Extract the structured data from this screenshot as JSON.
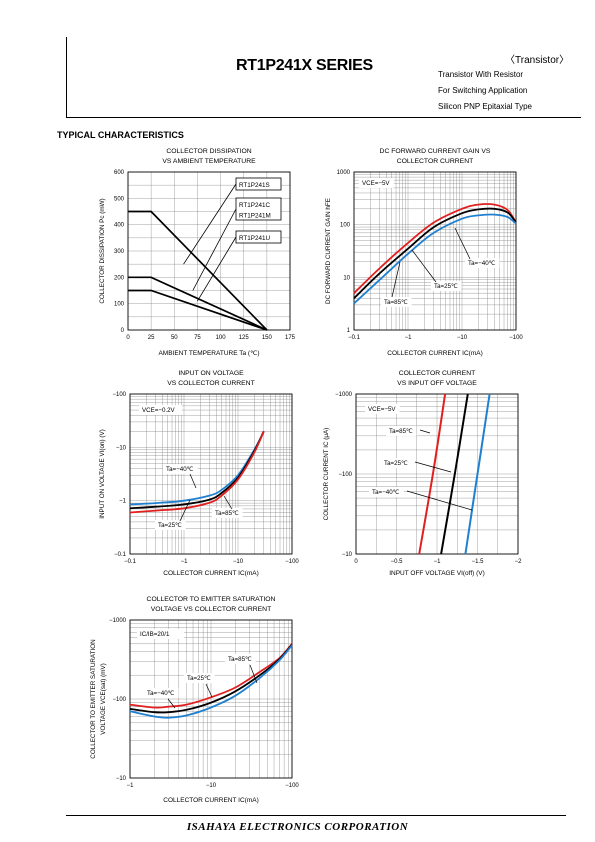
{
  "header": {
    "series_title": "RT1P241X SERIES",
    "category": "〈Transistor〉",
    "descriptions": [
      "Transistor With Resistor",
      "For Switching Application",
      "Silicon PNP Epitaxial Type"
    ]
  },
  "section_title": "TYPICAL CHARACTERISTICS",
  "footer": "ISAHAYA   ELECTRONICS   CORPORATION",
  "chart_data": [
    {
      "type": "line",
      "title": [
        "COLLECTOR DISSIPATION",
        "VS AMBIENT TEMPERATURE"
      ],
      "xlabel": "AMBIENT TEMPERATURE Ta (℃)",
      "ylabel": "COLLECTOR DISSIPATION Pc (mW)",
      "xlim": [
        0,
        175
      ],
      "ylim": [
        0,
        600
      ],
      "xticks": [
        "0",
        "25",
        "50",
        "75",
        "100",
        "125",
        "150",
        "175"
      ],
      "yticks": [
        "0",
        "100",
        "200",
        "300",
        "400",
        "500",
        "600"
      ],
      "series": [
        {
          "name": "RT1P241S",
          "x": [
            0,
            25,
            150
          ],
          "y": [
            450,
            450,
            0
          ]
        },
        {
          "name": "RT1P241C RT1P241M",
          "x": [
            0,
            25,
            150
          ],
          "y": [
            200,
            200,
            0
          ]
        },
        {
          "name": "RT1P241U",
          "x": [
            0,
            25,
            150
          ],
          "y": [
            150,
            150,
            0
          ]
        }
      ],
      "legend_boxes": [
        [
          "RT1P241S"
        ],
        [
          "RT1P241C",
          "RT1P241M"
        ],
        [
          "RT1P241U"
        ]
      ],
      "grid": true
    },
    {
      "type": "line",
      "title": [
        "DC FORWARD CURRENT GAIN  VS",
        "COLLECTOR CURRENT"
      ],
      "xlabel": "COLLECTOR CURRENT  IC(mA)",
      "ylabel": "DC FORWARD CURRENT GAIN hFE",
      "xscale": "log",
      "yscale": "log",
      "xlim": [
        0.1,
        100
      ],
      "ylim": [
        1,
        1000
      ],
      "xticks": [
        "−0.1",
        "−1",
        "−10",
        "−100"
      ],
      "yticks": [
        "1",
        "10",
        "100",
        "1000"
      ],
      "condition": "VCE=−5V",
      "series": [
        {
          "name": "Ta=85℃",
          "color": "#e02020",
          "x": [
            0.1,
            0.3,
            1,
            3,
            10,
            20,
            40,
            70,
            100
          ],
          "y": [
            5,
            15,
            45,
            110,
            200,
            240,
            240,
            190,
            110
          ]
        },
        {
          "name": "Ta=25℃",
          "color": "#000000",
          "x": [
            0.1,
            0.3,
            1,
            3,
            10,
            20,
            40,
            70,
            100
          ],
          "y": [
            4,
            12,
            35,
            90,
            165,
            195,
            200,
            170,
            110
          ]
        },
        {
          "name": "Ta=−40℃",
          "color": "#2080d0",
          "x": [
            0.1,
            0.3,
            1,
            3,
            10,
            20,
            40,
            70,
            100
          ],
          "y": [
            3.2,
            9,
            28,
            70,
            130,
            150,
            155,
            140,
            105
          ]
        }
      ],
      "grid": true
    },
    {
      "type": "line",
      "title": [
        "INPUT ON VOLTAGE",
        "VS COLLECTOR CURRENT"
      ],
      "xlabel": "COLLECTOR CURRENT  IC(mA)",
      "ylabel": "INPUT ON VOLTAGE VI(on) (V)",
      "xscale": "log",
      "yscale": "log",
      "xlim": [
        0.1,
        100
      ],
      "ylim": [
        0.1,
        100
      ],
      "xticks": [
        "−0.1",
        "−1",
        "−10",
        "−100"
      ],
      "yticks": [
        "−0.1",
        "−1",
        "−10",
        "−100"
      ],
      "condition": "VCE=−0.2V",
      "series": [
        {
          "name": "Ta=−40℃",
          "color": "#2080d0",
          "x": [
            0.1,
            0.3,
            1,
            3,
            5,
            10,
            20,
            30
          ],
          "y": [
            0.85,
            0.9,
            1.0,
            1.25,
            1.6,
            3,
            9,
            20
          ]
        },
        {
          "name": "Ta=25℃",
          "color": "#000000",
          "x": [
            0.1,
            0.3,
            1,
            3,
            5,
            10,
            20,
            30
          ],
          "y": [
            0.72,
            0.77,
            0.85,
            1.05,
            1.4,
            2.7,
            8.5,
            20
          ]
        },
        {
          "name": "Ta=85℃",
          "color": "#e02020",
          "x": [
            0.1,
            0.3,
            1,
            3,
            5,
            10,
            20,
            30
          ],
          "y": [
            0.6,
            0.65,
            0.72,
            0.92,
            1.25,
            2.5,
            8,
            20
          ]
        }
      ],
      "grid": true
    },
    {
      "type": "line",
      "title": [
        "COLLECTOR CURRENT",
        "VS INPUT OFF VOLTAGE"
      ],
      "xlabel": "INPUT OFF VOLTAGE VI(off) (V)",
      "ylabel": "COLLECTOR CURRENT IC (μA)",
      "yscale": "log",
      "xlim": [
        0,
        2
      ],
      "ylim": [
        10,
        1000
      ],
      "xticks": [
        "0",
        "−0.5",
        "−1",
        "−1.5",
        "−2"
      ],
      "yticks": [
        "−10",
        "−100",
        "−1000"
      ],
      "condition": "VCE=−5V",
      "series": [
        {
          "name": "Ta=85℃",
          "color": "#e02020",
          "x": [
            0.78,
            0.95,
            1.1
          ],
          "y": [
            10,
            100,
            1000
          ]
        },
        {
          "name": "Ta=25℃",
          "color": "#000000",
          "x": [
            1.05,
            1.22,
            1.38
          ],
          "y": [
            10,
            100,
            1000
          ]
        },
        {
          "name": "Ta=−40℃",
          "color": "#2080d0",
          "x": [
            1.35,
            1.5,
            1.65
          ],
          "y": [
            10,
            100,
            1000
          ]
        }
      ],
      "grid": true
    },
    {
      "type": "line",
      "title": [
        "COLLECTOR TO EMITTER SATURATION",
        "VOLTAGE VS COLLECTOR CURRENT"
      ],
      "xlabel": "COLLECTOR CURRENT  IC(mA)",
      "ylabel": [
        "COLLECTOR TO EMITTER SATURATION",
        "VOLTAGE VCE(sat) (mV)"
      ],
      "xscale": "log",
      "yscale": "log",
      "xlim": [
        1,
        100
      ],
      "ylim": [
        10,
        1000
      ],
      "xticks": [
        "−1",
        "−10",
        "−100"
      ],
      "yticks": [
        "−10",
        "−100",
        "−1000"
      ],
      "condition": "IC/IB=20/1",
      "series": [
        {
          "name": "Ta=85℃",
          "color": "#e02020",
          "x": [
            1,
            2,
            3,
            5,
            10,
            20,
            40,
            70,
            100
          ],
          "y": [
            85,
            78,
            80,
            85,
            105,
            140,
            220,
            330,
            500
          ]
        },
        {
          "name": "Ta=25℃",
          "color": "#000000",
          "x": [
            1,
            2,
            3,
            5,
            10,
            20,
            40,
            70,
            100
          ],
          "y": [
            75,
            68,
            68,
            73,
            90,
            125,
            200,
            320,
            490
          ]
        },
        {
          "name": "Ta=−40℃",
          "color": "#2080d0",
          "x": [
            1,
            2,
            3,
            5,
            10,
            20,
            40,
            70,
            100
          ],
          "y": [
            70,
            60,
            58,
            62,
            78,
            110,
            185,
            310,
            480
          ]
        }
      ],
      "grid": true
    }
  ]
}
